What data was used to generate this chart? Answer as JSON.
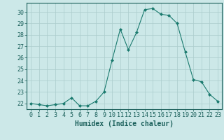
{
  "x": [
    0,
    1,
    2,
    3,
    4,
    5,
    6,
    7,
    8,
    9,
    10,
    11,
    12,
    13,
    14,
    15,
    16,
    17,
    18,
    19,
    20,
    21,
    22,
    23
  ],
  "y": [
    22.0,
    21.9,
    21.8,
    21.9,
    22.0,
    22.5,
    21.8,
    21.8,
    22.2,
    23.0,
    25.8,
    28.5,
    26.7,
    28.2,
    30.2,
    30.3,
    29.8,
    29.7,
    29.0,
    26.5,
    24.1,
    23.9,
    22.8,
    22.2
  ],
  "line_color": "#1a7a6e",
  "marker": "D",
  "marker_size": 2.0,
  "bg_color": "#cce8e8",
  "grid_color": "#aacccc",
  "xlabel": "Humidex (Indice chaleur)",
  "ylim": [
    21.5,
    30.8
  ],
  "xlim": [
    -0.5,
    23.5
  ],
  "yticks": [
    22,
    23,
    24,
    25,
    26,
    27,
    28,
    29,
    30
  ],
  "xticks": [
    0,
    1,
    2,
    3,
    4,
    5,
    6,
    7,
    8,
    9,
    10,
    11,
    12,
    13,
    14,
    15,
    16,
    17,
    18,
    19,
    20,
    21,
    22,
    23
  ],
  "tick_color": "#1a5f5a",
  "label_fontsize": 7.0,
  "tick_fontsize": 6.0
}
